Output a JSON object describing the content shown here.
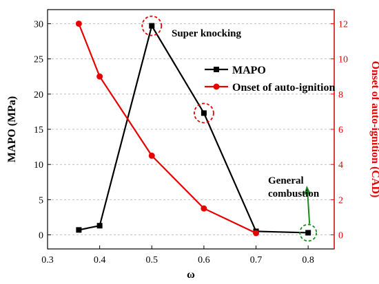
{
  "chart_data": {
    "type": "line",
    "xlabel": "ω",
    "ylabel_left": "MAPO (MPa)",
    "ylabel_right": "Onset of auto-ignition (CAD)",
    "xlim": [
      0.3,
      0.85
    ],
    "ylim_left": [
      -2,
      32
    ],
    "ylim_right": [
      -0.8,
      12.8
    ],
    "x_ticks": [
      0.3,
      0.4,
      0.5,
      0.6,
      0.7,
      0.8
    ],
    "x_tick_labels": [
      "0.3",
      "0.4",
      "0.5",
      "0.6",
      "0.7",
      "0.8"
    ],
    "y_left_ticks": [
      0,
      5,
      10,
      15,
      20,
      25,
      30
    ],
    "y_right_ticks": [
      0,
      2,
      4,
      6,
      8,
      10,
      12
    ],
    "grid": "horizontal dashed",
    "legend_position": "upper-right",
    "series": [
      {
        "name": "MAPO",
        "axis": "left",
        "color": "#000000",
        "marker": "square",
        "x": [
          0.36,
          0.4,
          0.5,
          0.6,
          0.7,
          0.8
        ],
        "y": [
          0.7,
          1.3,
          29.7,
          17.3,
          0.5,
          0.3
        ]
      },
      {
        "name": "Onset of auto-ignition",
        "axis": "right",
        "color": "#e60000",
        "marker": "circle",
        "x": [
          0.36,
          0.4,
          0.5,
          0.6,
          0.7,
          0.8
        ],
        "y": [
          12.0,
          9.0,
          4.5,
          1.5,
          0.1,
          null
        ]
      }
    ],
    "annotations": [
      {
        "text": "Super knocking",
        "target_x": 0.5,
        "target_y_left": 29.7,
        "circle_color": "#e60000"
      },
      {
        "text": "General combustion",
        "lines": [
          "General",
          "combustion"
        ],
        "target_x": 0.8,
        "target_y_left": 0.3,
        "circle_color": "#1a8a1a"
      }
    ],
    "extra_circle": {
      "target_x": 0.6,
      "target_y_left": 17.3,
      "circle_color": "#e60000"
    }
  }
}
